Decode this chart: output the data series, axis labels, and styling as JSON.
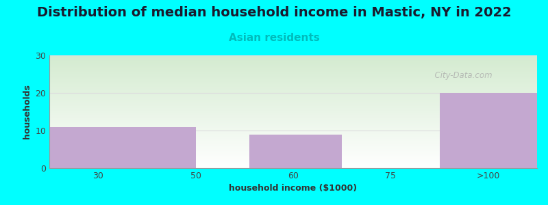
{
  "title": "Distribution of median household income in Mastic, NY in 2022",
  "subtitle": "Asian residents",
  "xlabel": "household income ($1000)",
  "ylabel": "households",
  "background_color": "#00FFFF",
  "bar_color": "#C4A8D0",
  "plot_bg_top": "#D4EBD0",
  "plot_bg_bottom": "#FFFFFF",
  "categories": [
    "30",
    "50",
    "60",
    "75",
    ">100"
  ],
  "bar_heights": [
    11,
    0,
    9,
    0,
    20
  ],
  "ylim": [
    0,
    30
  ],
  "yticks": [
    0,
    10,
    20,
    30
  ],
  "title_fontsize": 14,
  "subtitle_fontsize": 11,
  "subtitle_color": "#00BBBB",
  "ylabel_fontsize": 9,
  "xlabel_fontsize": 9,
  "watermark": "  City-Data.com",
  "grid_color": "#DDDDDD",
  "tick_label_color": "#444444"
}
